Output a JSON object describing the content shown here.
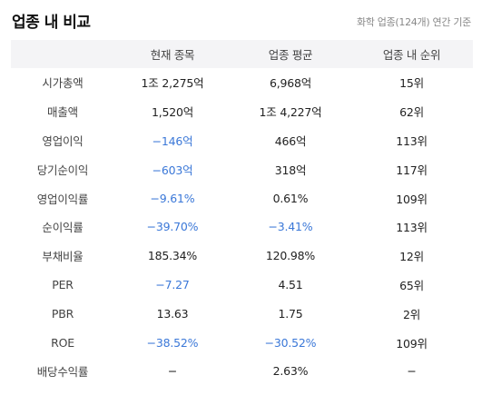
{
  "header": {
    "title": "업종 내 비교",
    "subtitle": "화학 업종(124개) 연간 기준"
  },
  "columns": [
    "",
    "현재 종목",
    "업종 평균",
    "업종 내 순위"
  ],
  "rows": [
    {
      "label": "시가총액",
      "current": "1조 2,275억",
      "average": "6,968억",
      "rank": "15위",
      "current_neg": false,
      "average_neg": false
    },
    {
      "label": "매출액",
      "current": "1,520억",
      "average": "1조 4,227억",
      "rank": "62위",
      "current_neg": false,
      "average_neg": false
    },
    {
      "label": "영업이익",
      "current": "−146억",
      "average": "466억",
      "rank": "113위",
      "current_neg": true,
      "average_neg": false
    },
    {
      "label": "당기순이익",
      "current": "−603억",
      "average": "318억",
      "rank": "117위",
      "current_neg": true,
      "average_neg": false
    },
    {
      "label": "영업이익률",
      "current": "−9.61%",
      "average": "0.61%",
      "rank": "109위",
      "current_neg": true,
      "average_neg": false
    },
    {
      "label": "순이익률",
      "current": "−39.70%",
      "average": "−3.41%",
      "rank": "113위",
      "current_neg": true,
      "average_neg": true
    },
    {
      "label": "부채비율",
      "current": "185.34%",
      "average": "120.98%",
      "rank": "12위",
      "current_neg": false,
      "average_neg": false
    },
    {
      "label": "PER",
      "current": "−7.27",
      "average": "4.51",
      "rank": "65위",
      "current_neg": true,
      "average_neg": false
    },
    {
      "label": "PBR",
      "current": "13.63",
      "average": "1.75",
      "rank": "2위",
      "current_neg": false,
      "average_neg": false
    },
    {
      "label": "ROE",
      "current": "−38.52%",
      "average": "−30.52%",
      "rank": "109위",
      "current_neg": true,
      "average_neg": true
    },
    {
      "label": "배당수익률",
      "current": "−",
      "average": "2.63%",
      "rank": "−",
      "current_neg": false,
      "average_neg": false
    }
  ],
  "colors": {
    "negative": "#3b78d8",
    "header_bg": "#f4f4f6"
  }
}
